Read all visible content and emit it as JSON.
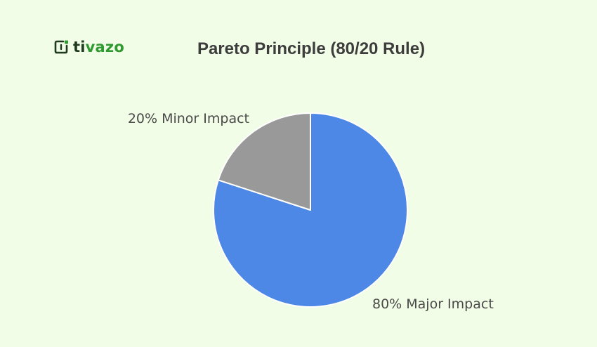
{
  "brand": {
    "name_prefix": "ti",
    "name_suffix": "vazo"
  },
  "chart_data": {
    "type": "pie",
    "title": "Pareto Principle (80/20 Rule)",
    "slices": [
      {
        "label": "80% Major Impact",
        "value": 80,
        "color": "#4e88e6"
      },
      {
        "label": "20% Minor Impact",
        "value": 20,
        "color": "#999999"
      }
    ],
    "start_angle_deg": 0,
    "direction": "clockwise",
    "legend": "none"
  }
}
